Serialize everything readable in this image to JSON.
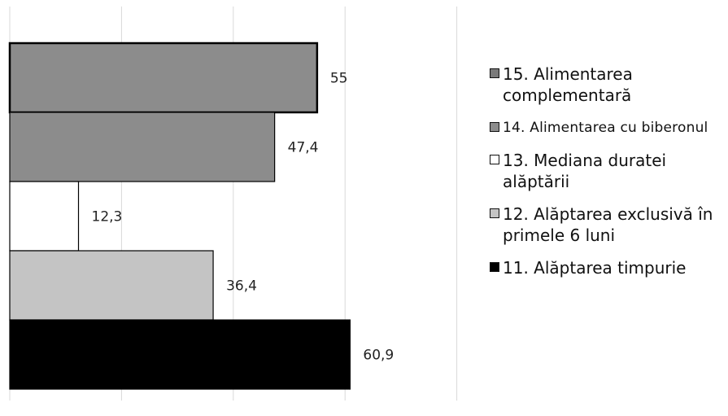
{
  "chart_data": {
    "type": "bar",
    "orientation": "horizontal",
    "xlim": [
      0,
      80
    ],
    "grid": true,
    "legend_position": "right",
    "categories": [
      "15. Alimentarea complementară",
      "14. Alimentarea cu biberonul",
      "13. Mediana duratei alăptării",
      "12. Alăptarea exclusivă în primele 6 luni",
      "11. Alăptarea timpurie"
    ],
    "values": [
      55,
      47.4,
      12.3,
      36.4,
      60.9
    ],
    "value_labels": [
      "55",
      "47,4",
      "12,3",
      "36,4",
      "60,9"
    ],
    "colors": [
      "#8c8c8c",
      "#8c8c8c",
      "#ffffff",
      "#c4c4c4",
      "#000000"
    ]
  },
  "legend": {
    "items": [
      {
        "label": "15. Alimentarea complementară",
        "color": "#7a7a7a"
      },
      {
        "label": "14. Alimentarea cu biberonul",
        "color": "#8c8c8c"
      },
      {
        "label": "13. Mediana duratei alăptării",
        "color": "#ffffff"
      },
      {
        "label": "12. Alăptarea exclusivă în primele 6 luni",
        "color": "#c4c4c4"
      },
      {
        "label": "11. Alăptarea timpurie",
        "color": "#000000"
      }
    ]
  }
}
